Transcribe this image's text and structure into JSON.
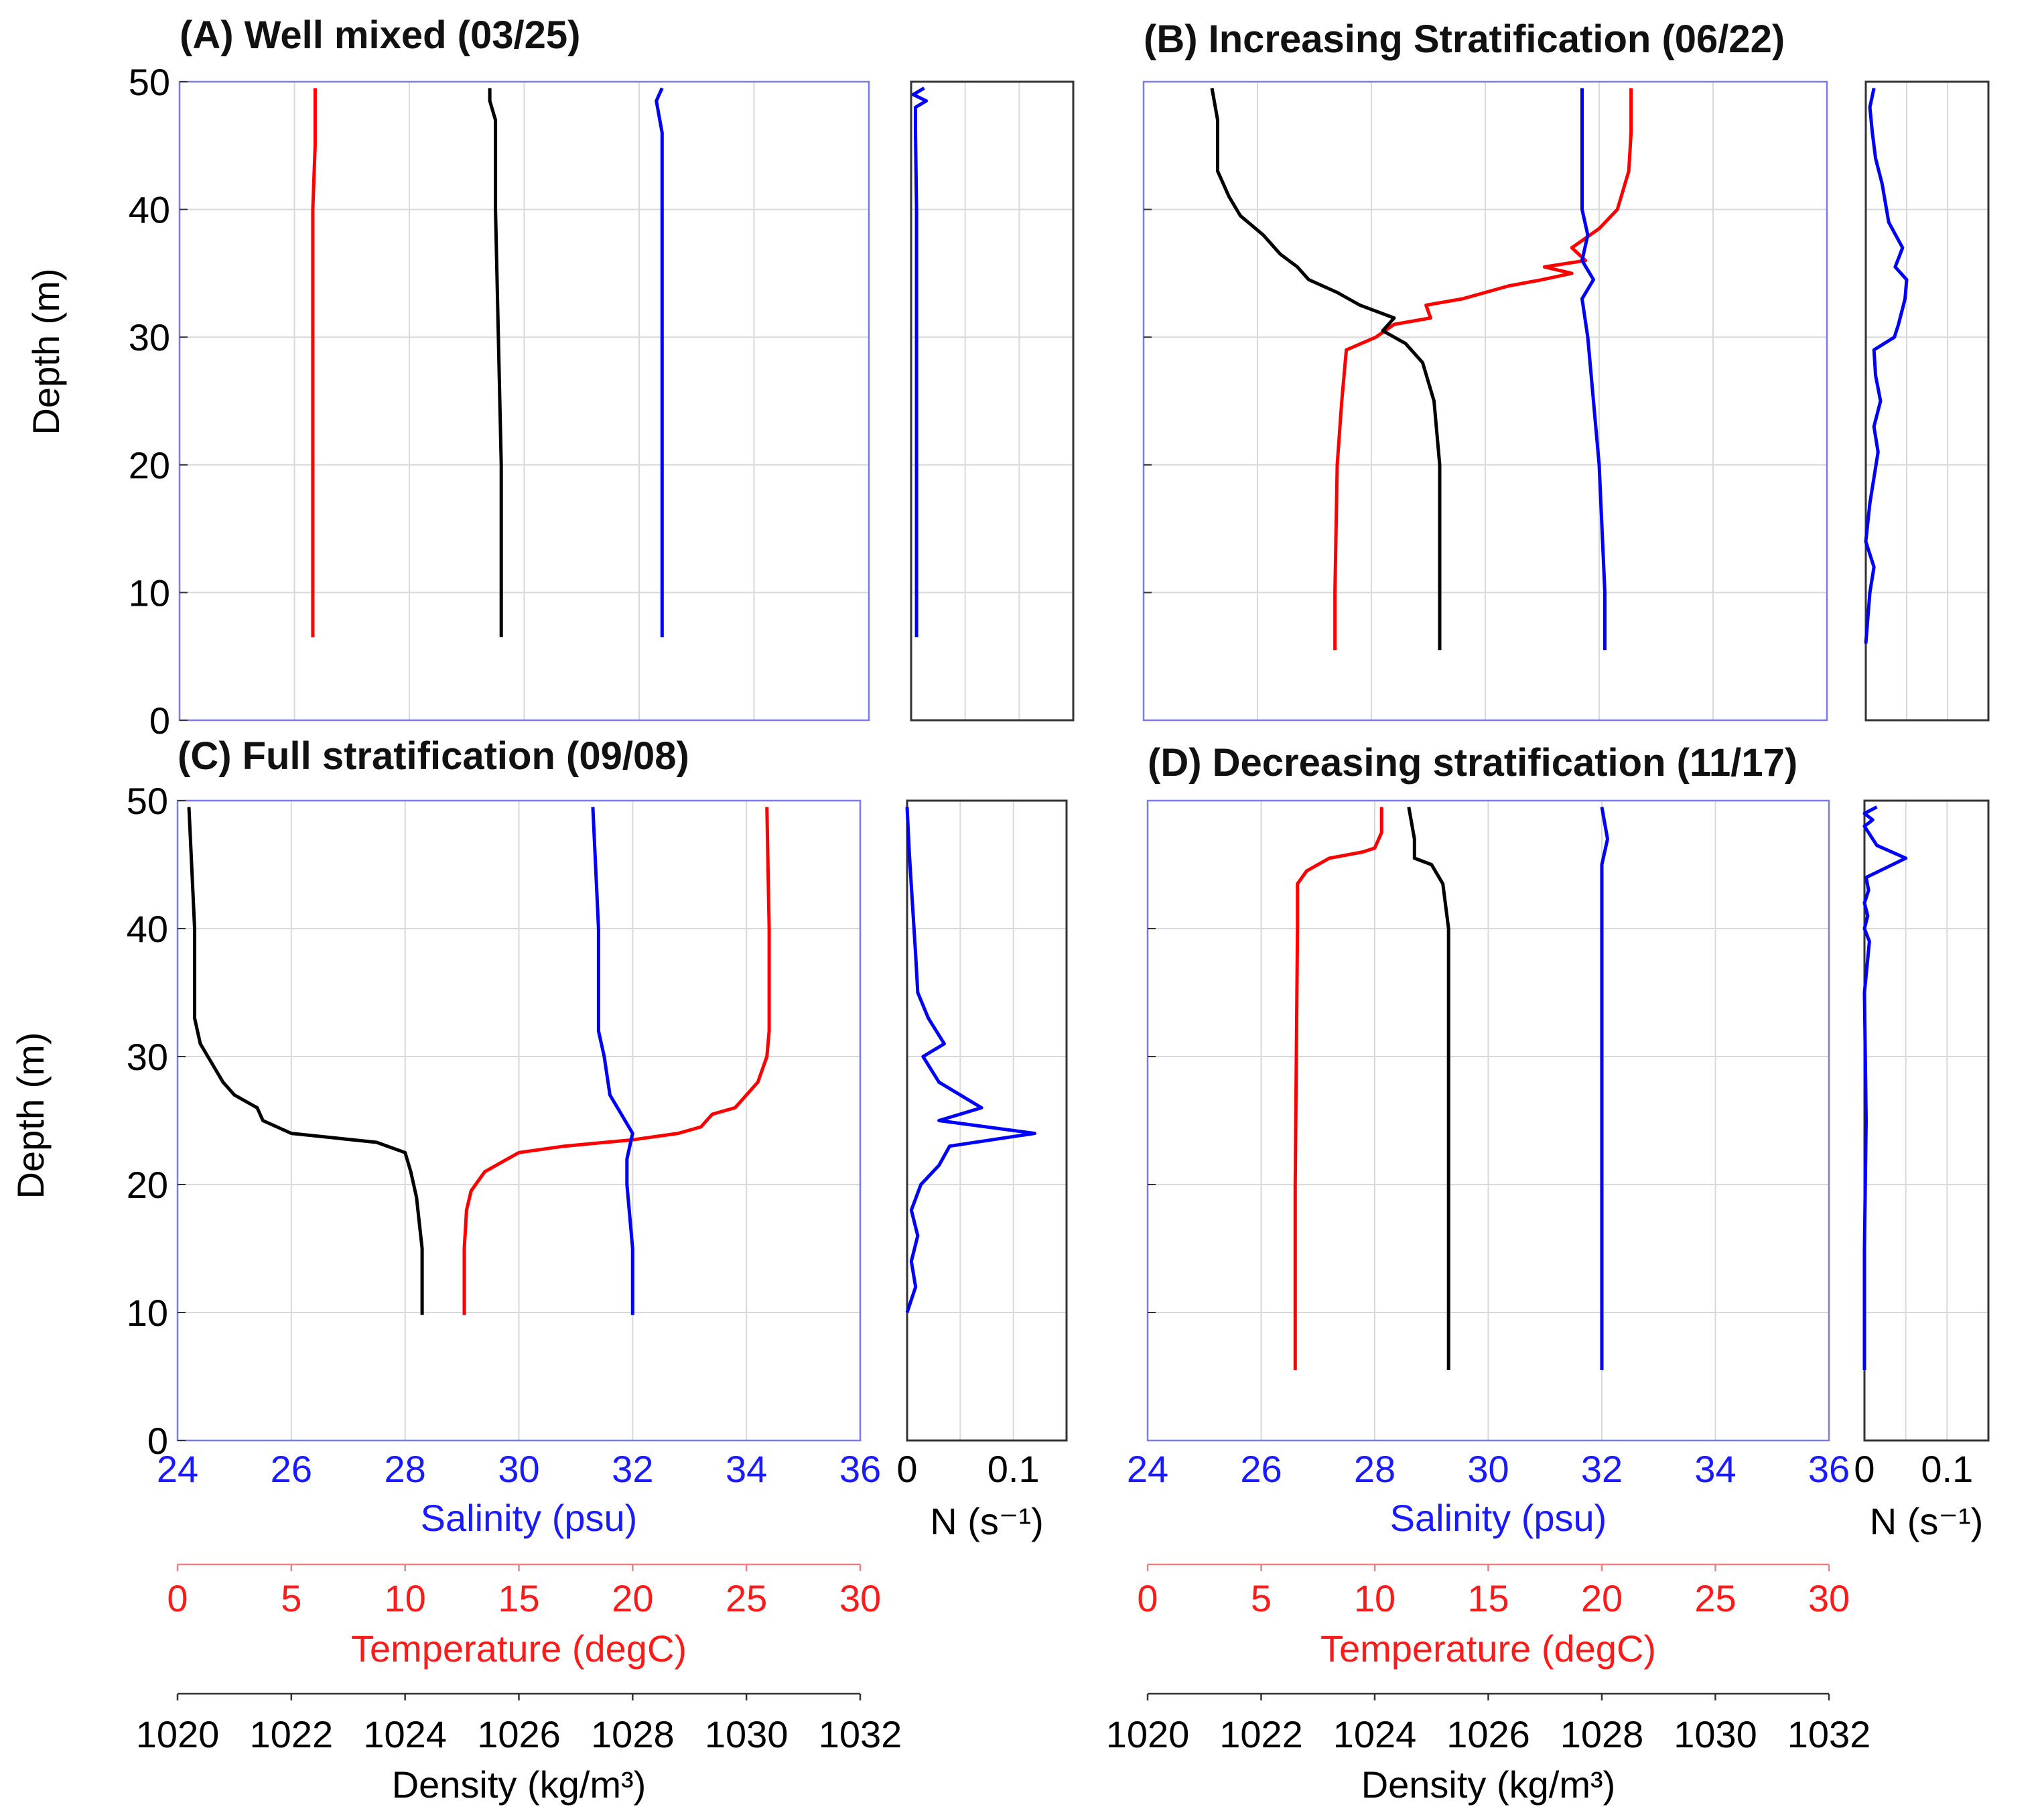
{
  "colors": {
    "salinity": "#0000ff",
    "temperature": "#ff0000",
    "density": "#000000",
    "n_line": "#0000ff"
  },
  "axis_labels": {
    "depth": "Depth (m)",
    "salinity": "Salinity (psu)",
    "temperature": "Temperature (degC)",
    "density": "Density (kg/m³)",
    "n": "N (s⁻¹)"
  },
  "axis_ticks": {
    "depth": [
      "0",
      "10",
      "20",
      "30",
      "40",
      "50"
    ],
    "salinity": [
      "24",
      "26",
      "28",
      "30",
      "32",
      "34",
      "36"
    ],
    "temperature": [
      "0",
      "5",
      "10",
      "15",
      "20",
      "25",
      "30"
    ],
    "density": [
      "1020",
      "1022",
      "1024",
      "1026",
      "1028",
      "1030",
      "1032"
    ],
    "n": [
      "0",
      "0.1"
    ]
  },
  "chart_data": [
    {
      "id": "A",
      "type": "line",
      "title": "(A) Well mixed (03/25)",
      "ylabel": "Depth (m)",
      "ylim": [
        0,
        50
      ],
      "salinity_xlim": [
        24,
        36
      ],
      "temperature_xlim": [
        0,
        30
      ],
      "density_xlim": [
        1020,
        1032
      ],
      "n_xlim": [
        0,
        0.15
      ],
      "series": [
        {
          "name": "Temperature",
          "axis": "temperature",
          "points": [
            [
              5.8,
              6.5
            ],
            [
              5.8,
              20
            ],
            [
              5.8,
              40
            ],
            [
              5.9,
              45
            ],
            [
              5.9,
              49.5
            ]
          ]
        },
        {
          "name": "Density",
          "axis": "density",
          "points": [
            [
              1025.6,
              6.5
            ],
            [
              1025.6,
              20
            ],
            [
              1025.5,
              40
            ],
            [
              1025.5,
              47
            ],
            [
              1025.4,
              48.5
            ],
            [
              1025.4,
              49.5
            ]
          ]
        },
        {
          "name": "Salinity",
          "axis": "salinity",
          "points": [
            [
              32.4,
              6.5
            ],
            [
              32.4,
              20
            ],
            [
              32.4,
              40
            ],
            [
              32.4,
              46
            ],
            [
              32.3,
              48.5
            ],
            [
              32.4,
              49.5
            ]
          ]
        },
        {
          "name": "N",
          "axis": "n",
          "points": [
            [
              0.005,
              6.5
            ],
            [
              0.005,
              20
            ],
            [
              0.005,
              40
            ],
            [
              0.004,
              46
            ],
            [
              0.004,
              48
            ],
            [
              0.014,
              48.5
            ],
            [
              0.002,
              49
            ],
            [
              0.012,
              49.5
            ]
          ]
        }
      ]
    },
    {
      "id": "B",
      "type": "line",
      "title": "(B) Increasing Stratification (06/22)",
      "ylabel": "",
      "ylim": [
        0,
        50
      ],
      "salinity_xlim": [
        24,
        36
      ],
      "temperature_xlim": [
        0,
        30
      ],
      "density_xlim": [
        1020,
        1032
      ],
      "n_xlim": [
        0,
        0.15
      ],
      "series": [
        {
          "name": "Temperature",
          "axis": "temperature",
          "points": [
            [
              8.4,
              5.5
            ],
            [
              8.4,
              10
            ],
            [
              8.5,
              20
            ],
            [
              8.7,
              25
            ],
            [
              8.9,
              29
            ],
            [
              10.2,
              30
            ],
            [
              11,
              31
            ],
            [
              12.6,
              31.5
            ],
            [
              12.4,
              32.5
            ],
            [
              14,
              33
            ],
            [
              16,
              34
            ],
            [
              17.5,
              34.5
            ],
            [
              18.8,
              35
            ],
            [
              17.6,
              35.5
            ],
            [
              19.4,
              36
            ],
            [
              18.8,
              37
            ],
            [
              20,
              38.5
            ],
            [
              20.8,
              40
            ],
            [
              21.3,
              43
            ],
            [
              21.4,
              46
            ],
            [
              21.4,
              49.5
            ]
          ]
        },
        {
          "name": "Density",
          "axis": "density",
          "points": [
            [
              1025.2,
              5.5
            ],
            [
              1025.2,
              10
            ],
            [
              1025.2,
              20
            ],
            [
              1025.1,
              25
            ],
            [
              1024.9,
              28
            ],
            [
              1024.6,
              29.5
            ],
            [
              1024.2,
              30.5
            ],
            [
              1024.4,
              31.5
            ],
            [
              1023.8,
              32.5
            ],
            [
              1023.4,
              33.5
            ],
            [
              1022.9,
              34.5
            ],
            [
              1022.7,
              35.5
            ],
            [
              1022.4,
              36.5
            ],
            [
              1022.1,
              38
            ],
            [
              1021.7,
              39.5
            ],
            [
              1021.5,
              41
            ],
            [
              1021.3,
              43
            ],
            [
              1021.3,
              47
            ],
            [
              1021.2,
              49.5
            ]
          ]
        },
        {
          "name": "Salinity",
          "axis": "salinity",
          "points": [
            [
              32.1,
              5.5
            ],
            [
              32.1,
              10
            ],
            [
              32.0,
              20
            ],
            [
              31.9,
              25
            ],
            [
              31.8,
              30
            ],
            [
              31.7,
              33
            ],
            [
              31.9,
              34.5
            ],
            [
              31.7,
              36
            ],
            [
              31.8,
              38
            ],
            [
              31.7,
              40
            ],
            [
              31.7,
              45
            ],
            [
              31.7,
              49.5
            ]
          ]
        },
        {
          "name": "N",
          "axis": "n",
          "points": [
            [
              0.0,
              6
            ],
            [
              0.005,
              10
            ],
            [
              0.01,
              12
            ],
            [
              0.0,
              14
            ],
            [
              0.005,
              17
            ],
            [
              0.01,
              19
            ],
            [
              0.015,
              21
            ],
            [
              0.01,
              23
            ],
            [
              0.018,
              25
            ],
            [
              0.012,
              27
            ],
            [
              0.01,
              29
            ],
            [
              0.035,
              30
            ],
            [
              0.04,
              31
            ],
            [
              0.048,
              33
            ],
            [
              0.05,
              34.5
            ],
            [
              0.036,
              35.5
            ],
            [
              0.045,
              37
            ],
            [
              0.028,
              39
            ],
            [
              0.02,
              42
            ],
            [
              0.012,
              44
            ],
            [
              0.008,
              46
            ],
            [
              0.005,
              48
            ],
            [
              0.01,
              49.5
            ]
          ]
        }
      ]
    },
    {
      "id": "C",
      "type": "line",
      "title": "(C) Full stratification (09/08)",
      "ylabel": "Depth (m)",
      "ylim": [
        0,
        50
      ],
      "salinity_xlim": [
        24,
        36
      ],
      "temperature_xlim": [
        0,
        30
      ],
      "density_xlim": [
        1020,
        1032
      ],
      "n_xlim": [
        0,
        0.15
      ],
      "series": [
        {
          "name": "Temperature",
          "axis": "temperature",
          "points": [
            [
              12.6,
              9.8
            ],
            [
              12.6,
              15
            ],
            [
              12.7,
              18
            ],
            [
              12.9,
              19.5
            ],
            [
              13.5,
              21
            ],
            [
              15,
              22.5
            ],
            [
              17,
              23
            ],
            [
              20,
              23.5
            ],
            [
              22,
              24
            ],
            [
              23,
              24.5
            ],
            [
              23.5,
              25.5
            ],
            [
              24.5,
              26
            ],
            [
              25,
              27
            ],
            [
              25.5,
              28
            ],
            [
              25.9,
              30
            ],
            [
              26,
              32
            ],
            [
              26,
              40
            ],
            [
              25.9,
              49.5
            ]
          ]
        },
        {
          "name": "Density",
          "axis": "density",
          "points": [
            [
              1024.3,
              9.8
            ],
            [
              1024.3,
              15
            ],
            [
              1024.2,
              19
            ],
            [
              1024.1,
              21
            ],
            [
              1024.0,
              22.5
            ],
            [
              1023.5,
              23.3
            ],
            [
              1022.0,
              24
            ],
            [
              1021.5,
              25
            ],
            [
              1021.4,
              26
            ],
            [
              1021.0,
              27
            ],
            [
              1020.8,
              28
            ],
            [
              1020.6,
              29.5
            ],
            [
              1020.4,
              31
            ],
            [
              1020.3,
              33
            ],
            [
              1020.3,
              40
            ],
            [
              1020.2,
              49.5
            ]
          ]
        },
        {
          "name": "Salinity",
          "axis": "salinity",
          "points": [
            [
              32.0,
              9.8
            ],
            [
              32.0,
              15
            ],
            [
              31.9,
              20
            ],
            [
              31.9,
              22
            ],
            [
              32.0,
              24
            ],
            [
              31.8,
              25.5
            ],
            [
              31.6,
              27
            ],
            [
              31.5,
              30
            ],
            [
              31.4,
              32
            ],
            [
              31.4,
              40
            ],
            [
              31.3,
              49.5
            ]
          ]
        },
        {
          "name": "N",
          "axis": "n",
          "points": [
            [
              0.0,
              10
            ],
            [
              0.008,
              12
            ],
            [
              0.004,
              14
            ],
            [
              0.01,
              16
            ],
            [
              0.004,
              18
            ],
            [
              0.013,
              20
            ],
            [
              0.03,
              21.5
            ],
            [
              0.04,
              23
            ],
            [
              0.12,
              24
            ],
            [
              0.03,
              25
            ],
            [
              0.07,
              26
            ],
            [
              0.03,
              28
            ],
            [
              0.015,
              30
            ],
            [
              0.035,
              31
            ],
            [
              0.02,
              33
            ],
            [
              0.01,
              35
            ],
            [
              0.008,
              38
            ],
            [
              0.005,
              42
            ],
            [
              0.002,
              46
            ],
            [
              0.0,
              49.5
            ]
          ]
        }
      ]
    },
    {
      "id": "D",
      "type": "line",
      "title": "(D) Decreasing stratification (11/17)",
      "ylabel": "",
      "ylim": [
        0,
        50
      ],
      "salinity_xlim": [
        24,
        36
      ],
      "temperature_xlim": [
        0,
        30
      ],
      "density_xlim": [
        1020,
        1032
      ],
      "n_xlim": [
        0,
        0.15
      ],
      "series": [
        {
          "name": "Temperature",
          "axis": "temperature",
          "points": [
            [
              6.5,
              5.5
            ],
            [
              6.5,
              20
            ],
            [
              6.6,
              40
            ],
            [
              6.6,
              43.5
            ],
            [
              7,
              44.5
            ],
            [
              8,
              45.5
            ],
            [
              9.5,
              46
            ],
            [
              10,
              46.3
            ],
            [
              10.3,
              47.5
            ],
            [
              10.3,
              49.5
            ]
          ]
        },
        {
          "name": "Density",
          "axis": "density",
          "points": [
            [
              1025.3,
              5.5
            ],
            [
              1025.3,
              20
            ],
            [
              1025.3,
              40
            ],
            [
              1025.2,
              43.5
            ],
            [
              1025.0,
              45
            ],
            [
              1024.7,
              45.5
            ],
            [
              1024.7,
              47
            ],
            [
              1024.6,
              49.5
            ]
          ]
        },
        {
          "name": "Salinity",
          "axis": "salinity",
          "points": [
            [
              32.0,
              5.5
            ],
            [
              32.0,
              20
            ],
            [
              32.0,
              40
            ],
            [
              32.0,
              45
            ],
            [
              32.1,
              47
            ],
            [
              32.0,
              49.5
            ]
          ]
        },
        {
          "name": "N",
          "axis": "n",
          "points": [
            [
              0.0,
              5.5
            ],
            [
              0.0,
              15
            ],
            [
              0.002,
              25
            ],
            [
              0.0,
              35
            ],
            [
              0.006,
              39
            ],
            [
              0.0,
              40
            ],
            [
              0.004,
              41
            ],
            [
              0.0,
              42
            ],
            [
              0.005,
              43
            ],
            [
              0.002,
              44
            ],
            [
              0.05,
              45.5
            ],
            [
              0.015,
              46.5
            ],
            [
              0.0,
              48
            ],
            [
              0.01,
              48.5
            ],
            [
              0.0,
              49
            ],
            [
              0.015,
              49.5
            ]
          ]
        }
      ]
    }
  ]
}
